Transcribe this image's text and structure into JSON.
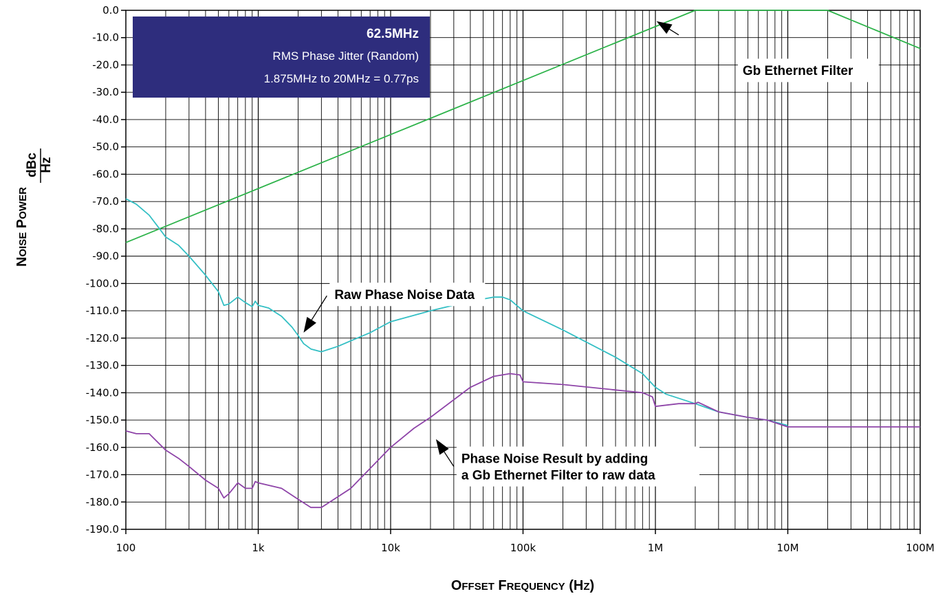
{
  "chart_data": {
    "type": "line",
    "xscale": "log",
    "xlim": [
      100,
      100000000
    ],
    "ylim": [
      -190,
      0
    ],
    "grid": true,
    "xlabel": {
      "parts": [
        {
          "text": "O",
          "small": false
        },
        {
          "text": "FFSET",
          "small": true
        },
        {
          "text": " F",
          "small": false
        },
        {
          "text": "REQUENCY",
          "small": true
        },
        {
          "text": " (H",
          "small": false
        },
        {
          "text": "Z",
          "small": true
        },
        {
          "text": ")",
          "small": false
        }
      ]
    },
    "ylabel": {
      "parts": [
        {
          "text": "N",
          "small": false
        },
        {
          "text": "OISE",
          "small": true
        },
        {
          "text": " P",
          "small": false
        },
        {
          "text": "OWER",
          "small": true
        }
      ],
      "unit_numerator": "dBc",
      "unit_denominator": "Hz"
    },
    "x_ticks": [
      {
        "value": 100,
        "label": "100"
      },
      {
        "value": 1000,
        "label": "1k"
      },
      {
        "value": 10000,
        "label": "10k"
      },
      {
        "value": 100000,
        "label": "100k"
      },
      {
        "value": 1000000,
        "label": "1M"
      },
      {
        "value": 10000000,
        "label": "10M"
      },
      {
        "value": 100000000,
        "label": "100M"
      }
    ],
    "y_ticks": [
      {
        "value": 0,
        "label": "0.0"
      },
      {
        "value": -10,
        "label": "-10.0"
      },
      {
        "value": -20,
        "label": "-20.0"
      },
      {
        "value": -30,
        "label": "-30.0"
      },
      {
        "value": -40,
        "label": "-40.0"
      },
      {
        "value": -50,
        "label": "-50.0"
      },
      {
        "value": -60,
        "label": "-60.0"
      },
      {
        "value": -70,
        "label": "-70.0"
      },
      {
        "value": -80,
        "label": "-80.0"
      },
      {
        "value": -90,
        "label": "-90.0"
      },
      {
        "value": -100,
        "label": "-100.0"
      },
      {
        "value": -110,
        "label": "-110.0"
      },
      {
        "value": -120,
        "label": "-120.0"
      },
      {
        "value": -130,
        "label": "-130.0"
      },
      {
        "value": -140,
        "label": "-140.0"
      },
      {
        "value": -150,
        "label": "-150.0"
      },
      {
        "value": -160,
        "label": "-160.0"
      },
      {
        "value": -170,
        "label": "-170.0"
      },
      {
        "value": -180,
        "label": "-180.0"
      },
      {
        "value": -190,
        "label": "-190.0"
      }
    ],
    "series": [
      {
        "key": "filter",
        "color": "#2db34a",
        "points": [
          [
            100,
            -85
          ],
          [
            2000000,
            0
          ],
          [
            20000000,
            0
          ],
          [
            100000000,
            -14
          ]
        ]
      },
      {
        "key": "raw",
        "color": "#33bfc4",
        "points": [
          [
            100,
            -69
          ],
          [
            120,
            -71
          ],
          [
            150,
            -75
          ],
          [
            180,
            -80
          ],
          [
            200,
            -83
          ],
          [
            250,
            -86
          ],
          [
            300,
            -90
          ],
          [
            400,
            -97
          ],
          [
            500,
            -103
          ],
          [
            550,
            -108
          ],
          [
            600,
            -107.5
          ],
          [
            700,
            -105
          ],
          [
            800,
            -107
          ],
          [
            900,
            -108.5
          ],
          [
            950,
            -106.5
          ],
          [
            1000,
            -108
          ],
          [
            1200,
            -109
          ],
          [
            1500,
            -112
          ],
          [
            1800,
            -116
          ],
          [
            2000,
            -119
          ],
          [
            2200,
            -122
          ],
          [
            2500,
            -124
          ],
          [
            3000,
            -125
          ],
          [
            4000,
            -123
          ],
          [
            5000,
            -121
          ],
          [
            7000,
            -118
          ],
          [
            10000,
            -114
          ],
          [
            20000,
            -110
          ],
          [
            40000,
            -106.5
          ],
          [
            60000,
            -105
          ],
          [
            70000,
            -105
          ],
          [
            80000,
            -106
          ],
          [
            100000,
            -110
          ],
          [
            200000,
            -117
          ],
          [
            500000,
            -127
          ],
          [
            800000,
            -133
          ],
          [
            1000000,
            -138
          ],
          [
            1200000,
            -140.5
          ],
          [
            2000000,
            -144
          ],
          [
            3000000,
            -147
          ],
          [
            5000000,
            -149
          ],
          [
            7000000,
            -150
          ],
          [
            10000000,
            -152
          ]
        ]
      },
      {
        "key": "result",
        "color": "#8e44a8",
        "points": [
          [
            100,
            -154
          ],
          [
            120,
            -155
          ],
          [
            150,
            -155
          ],
          [
            200,
            -161
          ],
          [
            250,
            -164
          ],
          [
            300,
            -167
          ],
          [
            400,
            -172
          ],
          [
            500,
            -175
          ],
          [
            550,
            -178.5
          ],
          [
            600,
            -177
          ],
          [
            700,
            -173
          ],
          [
            800,
            -175
          ],
          [
            900,
            -175
          ],
          [
            950,
            -172.5
          ],
          [
            1000,
            -173
          ],
          [
            1500,
            -175
          ],
          [
            2000,
            -179
          ],
          [
            2500,
            -182
          ],
          [
            3000,
            -182
          ],
          [
            5000,
            -175
          ],
          [
            10000,
            -160
          ],
          [
            15000,
            -153
          ],
          [
            20000,
            -149
          ],
          [
            40000,
            -138
          ],
          [
            60000,
            -134
          ],
          [
            80000,
            -133
          ],
          [
            95000,
            -133.5
          ],
          [
            100000,
            -136
          ],
          [
            200000,
            -137
          ],
          [
            500000,
            -139
          ],
          [
            800000,
            -140
          ],
          [
            950000,
            -141.5
          ],
          [
            1000000,
            -145
          ],
          [
            1500000,
            -144
          ],
          [
            2000000,
            -144
          ],
          [
            2100000,
            -143.5
          ],
          [
            3000000,
            -147
          ],
          [
            5000000,
            -149
          ],
          [
            7000000,
            -150
          ],
          [
            10000000,
            -152.5
          ],
          [
            100000000,
            -152.5
          ]
        ]
      }
    ],
    "info_box": {
      "line1": "62.5MHz",
      "line2": "RMS Phase Jitter (Random)",
      "line3": "1.875MHz to 20MHz = 0.77ps",
      "fill": "#2e2d7d"
    },
    "annotations": [
      {
        "key": "filter-label",
        "lines": [
          "Gb Ethernet Filter"
        ],
        "tail": [
          1500000,
          -9
        ],
        "tip": [
          1020000,
          -4
        ],
        "anchor": [
          4000000,
          -22
        ]
      },
      {
        "key": "raw-label",
        "lines": [
          "Raw Phase Noise Data"
        ],
        "tail": [
          3300,
          -104.5
        ],
        "tip": [
          2200,
          -118
        ],
        "anchor": [
          3300,
          -104
        ]
      },
      {
        "key": "result-label",
        "lines": [
          "Phase Noise Result by adding",
          "a Gb Ethernet Filter to raw data"
        ],
        "tail": [
          30000,
          -167
        ],
        "tip": [
          22000,
          -157
        ],
        "anchor": [
          30000,
          -167
        ]
      }
    ]
  }
}
